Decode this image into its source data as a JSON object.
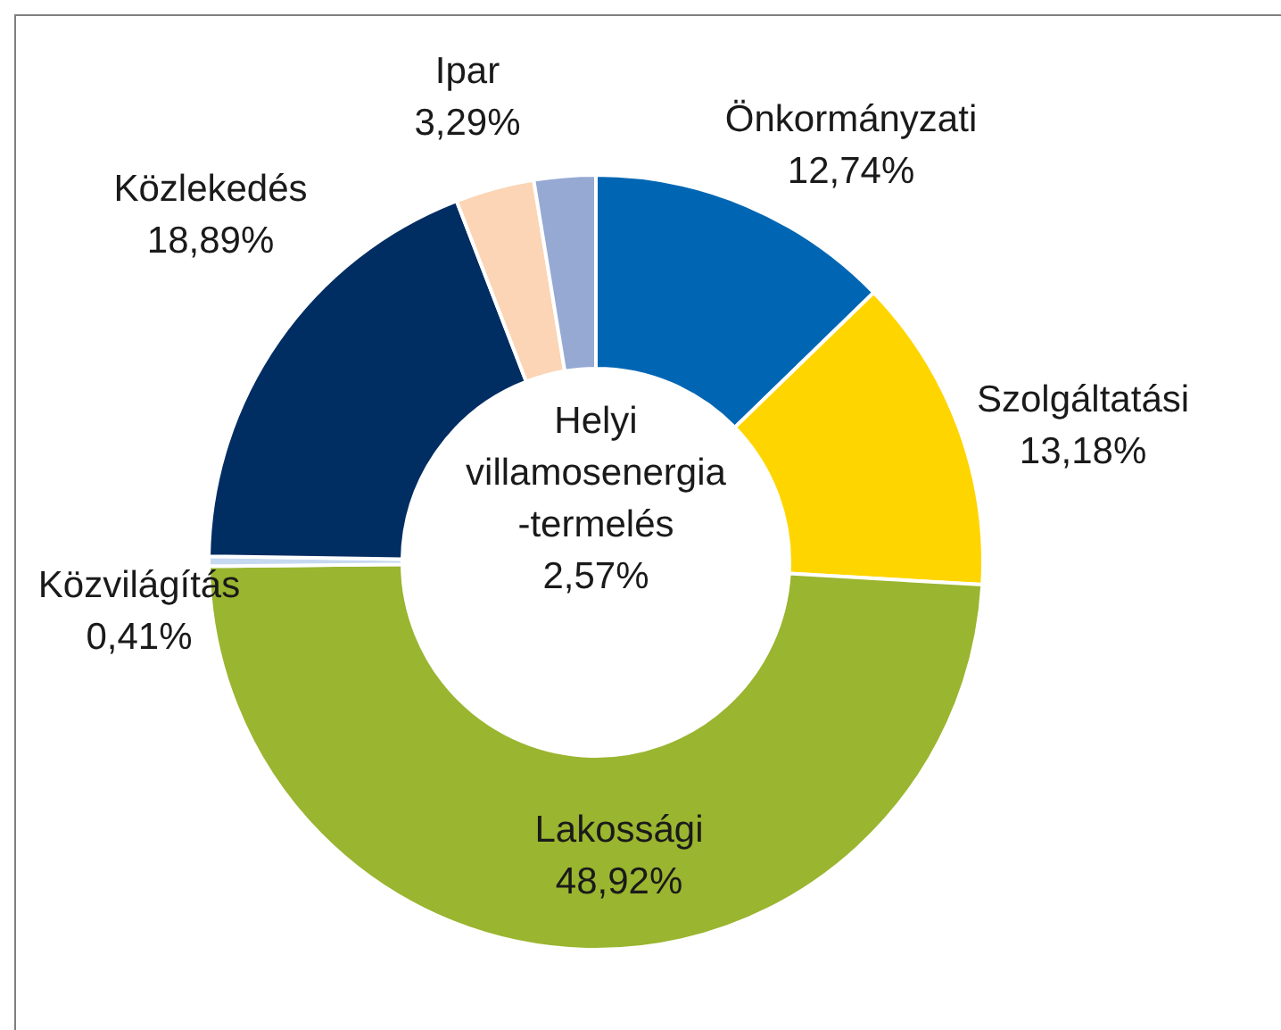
{
  "chart_data": {
    "type": "donut",
    "categories": [
      "Önkormányzati",
      "Szolgáltatási",
      "Lakossági",
      "Közvilágítás",
      "Közlekedés",
      "Ipar",
      "Helyi villamosenergia-termelés"
    ],
    "values": [
      12.74,
      13.18,
      48.92,
      0.41,
      18.89,
      3.29,
      2.57
    ],
    "colors": [
      "#0066b3",
      "#ffd500",
      "#9ab52f",
      "#c6d9f0",
      "#002d62",
      "#fbd5b5",
      "#95a9d3"
    ],
    "value_labels": [
      "12,74%",
      "13,18%",
      "48,92%",
      "0,41%",
      "18,89%",
      "3,29%",
      "2,57%"
    ],
    "legend": false
  }
}
